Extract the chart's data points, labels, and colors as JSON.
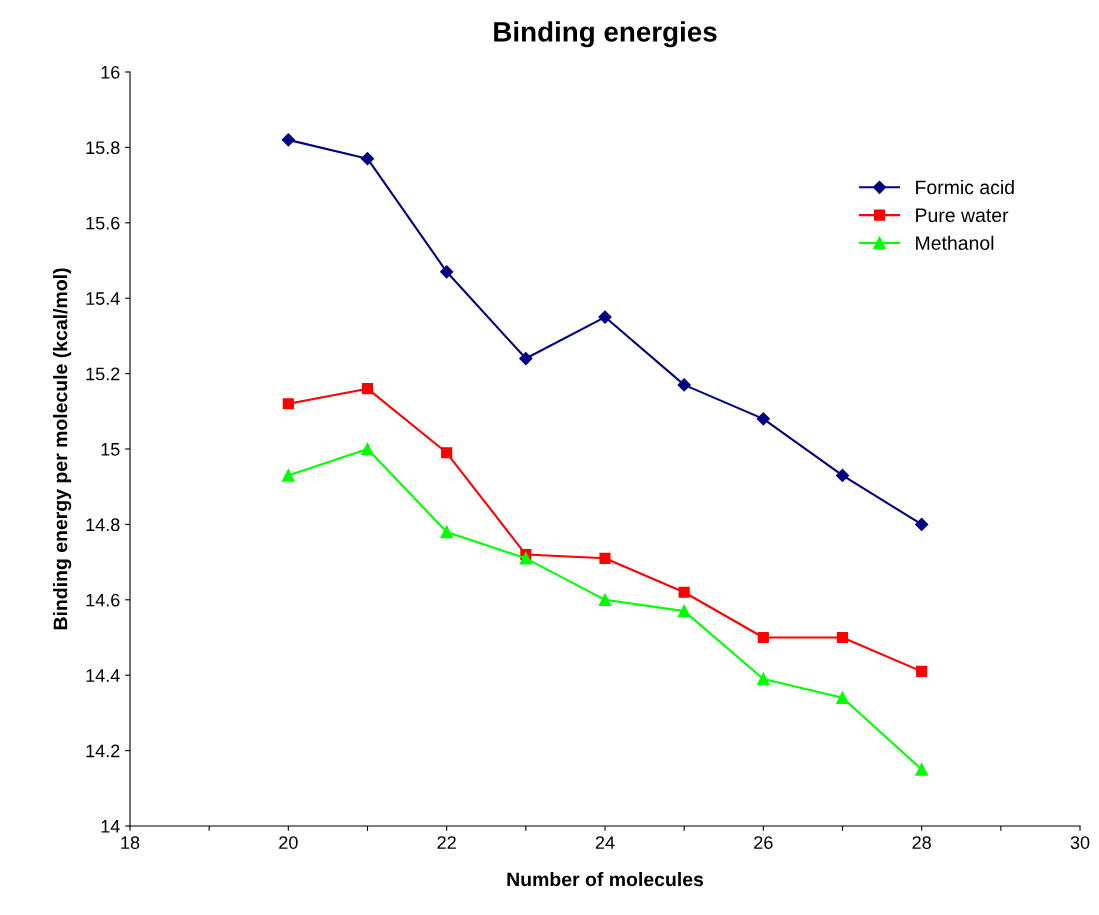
{
  "chart_data": {
    "type": "line",
    "title": "Binding energies",
    "xlabel": "Number of molecules",
    "ylabel": "Binding energy per molecule (kcal/mol)",
    "x": [
      20,
      21,
      22,
      23,
      24,
      25,
      26,
      27,
      28
    ],
    "series": [
      {
        "name": "Formic acid",
        "color": "#000080",
        "marker": "diamond",
        "values": [
          15.82,
          15.77,
          15.47,
          15.24,
          15.35,
          15.17,
          15.08,
          14.93,
          14.8
        ]
      },
      {
        "name": "Pure water",
        "color": "#ff0000",
        "marker": "square",
        "values": [
          15.12,
          15.16,
          14.99,
          14.72,
          14.71,
          14.62,
          14.5,
          14.5,
          14.41
        ]
      },
      {
        "name": "Methanol",
        "color": "#00ff00",
        "marker": "triangle",
        "values": [
          14.93,
          15.0,
          14.78,
          14.71,
          14.6,
          14.57,
          14.39,
          14.34,
          14.15
        ]
      }
    ],
    "xlim": [
      18,
      30
    ],
    "xticks": [
      18,
      {
        "value": 19,
        "label": null
      },
      20,
      {
        "value": 21,
        "label": null
      },
      22,
      {
        "value": 23,
        "label": null
      },
      24,
      {
        "value": 25,
        "label": null
      },
      26,
      {
        "value": 27,
        "label": null
      },
      28,
      {
        "value": 29,
        "label": null
      },
      30
    ],
    "ylim": [
      14,
      16
    ],
    "yticks": [
      14,
      14.2,
      14.4,
      14.6,
      14.8,
      15,
      15.2,
      15.4,
      15.6,
      15.8,
      16
    ],
    "grid": false,
    "legend": "top right",
    "line_style": "solid"
  }
}
